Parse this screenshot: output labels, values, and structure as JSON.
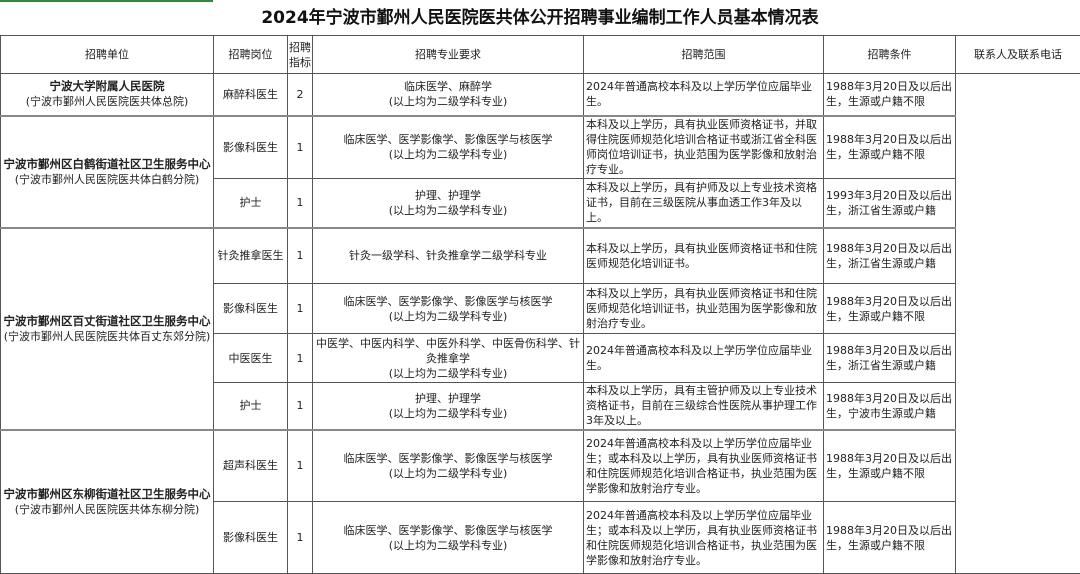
{
  "title": "2024年宁波市鄞州人民医院医共体公开招聘事业编制工作人员基本情况表",
  "headers": [
    "招聘单位",
    "招聘岗位",
    "招聘指标",
    "招聘专业要求",
    "招聘范围",
    "招聘条件",
    "联系人及联系电话"
  ],
  "units": [
    {
      "name": "宁波大学附属人民医院",
      "sub": "(宁波市鄞州人民医院医共体总院)",
      "rows": [
        {
          "post": "麻醉科医生",
          "count": "2",
          "major": "临床医学、麻醉学\n(以上均为二级学科专业)",
          "scope": "2024年普通高校本科及以上学历学位应届毕业生。",
          "cond": "1988年3月20日及以后出生，生源或户籍不限"
        }
      ]
    },
    {
      "name": "宁波市鄞州区白鹤街道社区卫生服务中心",
      "sub": "(宁波市鄞州人民医院医共体白鹤分院)",
      "rows": [
        {
          "post": "影像科医生",
          "count": "1",
          "major": "临床医学、医学影像学、影像医学与核医学\n(以上均为二级学科专业)",
          "scope": "本科及以上学历，具有执业医师资格证书，并取得住院医师规范化培训合格证书或浙江省全科医师岗位培训证书，执业范围为医学影像和放射治疗专业。",
          "cond": "1988年3月20日及以后出生，生源或户籍不限"
        },
        {
          "post": "护士",
          "count": "1",
          "major": "护理、护理学\n(以上均为二级学科专业)",
          "scope": "本科及以上学历，具有护师及以上专业技术资格证书，目前在三级医院从事血透工作3年及以上。",
          "cond": "1993年3月20日及以后出生，浙江省生源或户籍"
        }
      ]
    },
    {
      "name": "宁波市鄞州区百丈街道社区卫生服务中心",
      "sub": "(宁波市鄞州人民医院医共体百丈东郊分院)",
      "rows": [
        {
          "post": "针灸推拿医生",
          "count": "1",
          "major": "针灸一级学科、针灸推拿学二级学科专业",
          "scope": "本科及以上学历，具有执业医师资格证书和住院医师规范化培训证书。",
          "cond": "1988年3月20日及以后出生，浙江省生源或户籍"
        },
        {
          "post": "影像科医生",
          "count": "1",
          "major": "临床医学、医学影像学、影像医学与核医学\n(以上均为二级学科专业)",
          "scope": "本科及以上学历，具有执业医师资格证书和住院医师规范化培训证书，执业范围为医学影像和放射治疗专业。",
          "cond": "1988年3月20日及以后出生，生源或户籍不限"
        },
        {
          "post": "中医医生",
          "count": "1",
          "major": "中医学、中医内科学、中医外科学、中医骨伤科学、针灸推拿学\n(以上均为二级学科专业)",
          "scope": "2024年普通高校本科及以上学历学位应届毕业生。",
          "cond": "1988年3月20日及以后出生，浙江省生源或户籍"
        },
        {
          "post": "护士",
          "count": "1",
          "major": "护理、护理学\n(以上均为二级学科专业)",
          "scope": "本科及以上学历，具有主管护师及以上专业技术资格证书，目前在三级综合性医院从事护理工作3年及以上。",
          "cond": "1988年3月20日及以后出生，宁波市生源或户籍"
        }
      ]
    },
    {
      "name": "宁波市鄞州区东柳街道社区卫生服务中心",
      "sub": "(宁波市鄞州人民医院医共体东柳分院)",
      "rows": [
        {
          "post": "超声科医生",
          "count": "1",
          "major": "临床医学、医学影像学、影像医学与核医学\n(以上均为二级学科专业)",
          "scope": "2024年普通高校本科及以上学历学位应届毕业生；或本科及以上学历，具有执业医师资格证书和住院医师规范化培训合格证书，执业范围为医学影像和放射治疗专业。",
          "cond": "1988年3月20日及以后出生，生源或户籍不限"
        },
        {
          "post": "影像科医生",
          "count": "1",
          "major": "临床医学、医学影像学、影像医学与核医学\n(以上均为二级学科专业)",
          "scope": "2024年普通高校本科及以上学历学位应届毕业生；或本科及以上学历，具有执业医师资格证书和住院医师规范化培训合格证书，执业范围为医学影像和放射治疗专业。",
          "cond": "1988年3月20日及以后出生，生源或户籍不限"
        }
      ]
    }
  ]
}
